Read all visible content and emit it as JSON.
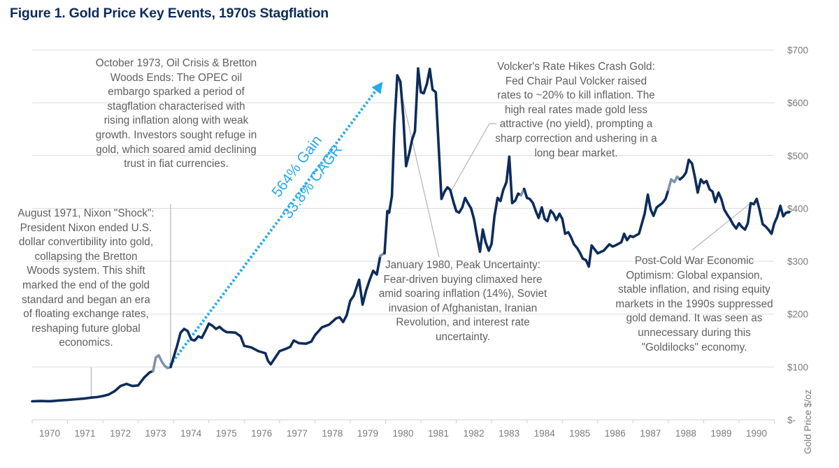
{
  "title": "Figure 1. Gold Price Key Events, 1970s Stagflation",
  "chart_data": {
    "type": "line",
    "title": "Figure 1. Gold Price Key Events, 1970s Stagflation",
    "xlabel": "",
    "ylabel": "Gold Price $/oz",
    "xlim": [
      1970,
      1991
    ],
    "ylim": [
      0,
      700
    ],
    "grid": true,
    "y_axis_side": "right",
    "x_ticks": [
      "1970",
      "1971",
      "1972",
      "1973",
      "1974",
      "1975",
      "1976",
      "1977",
      "1978",
      "1979",
      "1980",
      "1981",
      "1982",
      "1983",
      "1984",
      "1985",
      "1986",
      "1987",
      "1988",
      "1989",
      "1990"
    ],
    "y_ticks": [
      {
        "value": 0,
        "label": "$-"
      },
      {
        "value": 100,
        "label": "$100"
      },
      {
        "value": 200,
        "label": "$200"
      },
      {
        "value": 300,
        "label": "$300"
      },
      {
        "value": 400,
        "label": "$400"
      },
      {
        "value": 500,
        "label": "$500"
      },
      {
        "value": 600,
        "label": "$600"
      },
      {
        "value": 700,
        "label": "$700"
      }
    ],
    "series": [
      {
        "name": "Gold Price $/oz",
        "color": "#0d2c5a",
        "highlight_color": "#7f93ad",
        "points": [
          [
            1970.0,
            35
          ],
          [
            1970.25,
            35.5
          ],
          [
            1970.5,
            35.2
          ],
          [
            1970.75,
            36.5
          ],
          [
            1971.0,
            37.5
          ],
          [
            1971.25,
            39
          ],
          [
            1971.5,
            40.5
          ],
          [
            1971.67,
            42
          ],
          [
            1971.83,
            43
          ],
          [
            1972.0,
            45
          ],
          [
            1972.17,
            48
          ],
          [
            1972.33,
            54
          ],
          [
            1972.5,
            64
          ],
          [
            1972.67,
            68
          ],
          [
            1972.83,
            64
          ],
          [
            1973.0,
            65
          ],
          [
            1973.17,
            80
          ],
          [
            1973.33,
            90
          ],
          [
            1973.42,
            92
          ],
          [
            1973.5,
            118
          ],
          [
            1973.58,
            122
          ],
          [
            1973.67,
            110
          ],
          [
            1973.75,
            102
          ],
          [
            1973.83,
            98
          ],
          [
            1973.92,
            100
          ],
          [
            1974.0,
            118
          ],
          [
            1974.1,
            140
          ],
          [
            1974.2,
            165
          ],
          [
            1974.3,
            172
          ],
          [
            1974.4,
            168
          ],
          [
            1974.5,
            152
          ],
          [
            1974.6,
            150
          ],
          [
            1974.7,
            158
          ],
          [
            1974.8,
            155
          ],
          [
            1974.9,
            168
          ],
          [
            1975.0,
            182
          ],
          [
            1975.1,
            178
          ],
          [
            1975.2,
            172
          ],
          [
            1975.3,
            176
          ],
          [
            1975.4,
            170
          ],
          [
            1975.5,
            166
          ],
          [
            1975.75,
            165
          ],
          [
            1975.9,
            158
          ],
          [
            1976.0,
            140
          ],
          [
            1976.2,
            137
          ],
          [
            1976.4,
            130
          ],
          [
            1976.6,
            126
          ],
          [
            1976.67,
            112
          ],
          [
            1976.75,
            105
          ],
          [
            1976.9,
            120
          ],
          [
            1977.0,
            130
          ],
          [
            1977.2,
            135
          ],
          [
            1977.3,
            138
          ],
          [
            1977.4,
            150
          ],
          [
            1977.55,
            145
          ],
          [
            1977.75,
            144
          ],
          [
            1977.9,
            148
          ],
          [
            1978.0,
            160
          ],
          [
            1978.2,
            175
          ],
          [
            1978.4,
            180
          ],
          [
            1978.6,
            192
          ],
          [
            1978.7,
            194
          ],
          [
            1978.8,
            185
          ],
          [
            1978.9,
            198
          ],
          [
            1979.0,
            225
          ],
          [
            1979.1,
            235
          ],
          [
            1979.25,
            265
          ],
          [
            1979.35,
            218
          ],
          [
            1979.45,
            245
          ],
          [
            1979.55,
            265
          ],
          [
            1979.65,
            282
          ],
          [
            1979.75,
            275
          ],
          [
            1979.85,
            310
          ],
          [
            1979.95,
            315
          ],
          [
            1979.97,
            315
          ],
          [
            1980.05,
            395
          ],
          [
            1980.1,
            392
          ],
          [
            1980.18,
            424
          ],
          [
            1980.25,
            555
          ],
          [
            1980.33,
            652
          ],
          [
            1980.42,
            640
          ],
          [
            1980.5,
            574
          ],
          [
            1980.58,
            480
          ],
          [
            1980.67,
            505
          ],
          [
            1980.75,
            530
          ],
          [
            1980.83,
            546
          ],
          [
            1980.92,
            665
          ],
          [
            1981.0,
            620
          ],
          [
            1981.08,
            618
          ],
          [
            1981.17,
            636
          ],
          [
            1981.25,
            664
          ],
          [
            1981.33,
            625
          ],
          [
            1981.42,
            620
          ],
          [
            1981.5,
            520
          ],
          [
            1981.58,
            418
          ],
          [
            1981.67,
            432
          ],
          [
            1981.75,
            440
          ],
          [
            1981.83,
            435
          ],
          [
            1981.92,
            412
          ],
          [
            1982.0,
            395
          ],
          [
            1982.08,
            392
          ],
          [
            1982.17,
            402
          ],
          [
            1982.25,
            420
          ],
          [
            1982.33,
            410
          ],
          [
            1982.42,
            400
          ],
          [
            1982.5,
            380
          ],
          [
            1982.58,
            350
          ],
          [
            1982.67,
            318
          ],
          [
            1982.75,
            360
          ],
          [
            1982.83,
            336
          ],
          [
            1982.92,
            320
          ],
          [
            1983.0,
            333
          ],
          [
            1983.08,
            385
          ],
          [
            1983.17,
            420
          ],
          [
            1983.25,
            414
          ],
          [
            1983.33,
            435
          ],
          [
            1983.42,
            450
          ],
          [
            1983.5,
            498
          ],
          [
            1983.58,
            410
          ],
          [
            1983.67,
            415
          ],
          [
            1983.75,
            428
          ],
          [
            1983.83,
            425
          ],
          [
            1983.92,
            437
          ],
          [
            1984.0,
            420
          ],
          [
            1984.08,
            418
          ],
          [
            1984.17,
            410
          ],
          [
            1984.25,
            395
          ],
          [
            1984.33,
            382
          ],
          [
            1984.42,
            402
          ],
          [
            1984.5,
            380
          ],
          [
            1984.58,
            376
          ],
          [
            1984.67,
            396
          ],
          [
            1984.75,
            390
          ],
          [
            1984.83,
            378
          ],
          [
            1984.92,
            390
          ],
          [
            1985.0,
            380
          ],
          [
            1985.08,
            352
          ],
          [
            1985.17,
            355
          ],
          [
            1985.25,
            345
          ],
          [
            1985.33,
            332
          ],
          [
            1985.42,
            325
          ],
          [
            1985.5,
            316
          ],
          [
            1985.58,
            305
          ],
          [
            1985.67,
            302
          ],
          [
            1985.75,
            290
          ],
          [
            1985.83,
            330
          ],
          [
            1985.92,
            322
          ],
          [
            1986.0,
            315
          ],
          [
            1986.17,
            320
          ],
          [
            1986.33,
            332
          ],
          [
            1986.42,
            328
          ],
          [
            1986.5,
            330
          ],
          [
            1986.67,
            336
          ],
          [
            1986.75,
            352
          ],
          [
            1986.83,
            340
          ],
          [
            1986.92,
            348
          ],
          [
            1987.0,
            346
          ],
          [
            1987.17,
            352
          ],
          [
            1987.33,
            390
          ],
          [
            1987.42,
            426
          ],
          [
            1987.5,
            398
          ],
          [
            1987.58,
            386
          ],
          [
            1987.67,
            402
          ],
          [
            1987.83,
            410
          ],
          [
            1987.92,
            418
          ],
          [
            1988.0,
            435
          ],
          [
            1988.08,
            455
          ],
          [
            1988.17,
            450
          ],
          [
            1988.25,
            460
          ],
          [
            1988.33,
            455
          ],
          [
            1988.42,
            460
          ],
          [
            1988.5,
            468
          ],
          [
            1988.58,
            492
          ],
          [
            1988.67,
            485
          ],
          [
            1988.75,
            460
          ],
          [
            1988.83,
            430
          ],
          [
            1988.92,
            455
          ],
          [
            1989.0,
            448
          ],
          [
            1989.08,
            452
          ],
          [
            1989.17,
            436
          ],
          [
            1989.25,
            432
          ],
          [
            1989.33,
            412
          ],
          [
            1989.42,
            430
          ],
          [
            1989.5,
            418
          ],
          [
            1989.58,
            398
          ],
          [
            1989.67,
            388
          ],
          [
            1989.75,
            380
          ],
          [
            1989.83,
            370
          ],
          [
            1989.92,
            362
          ],
          [
            1990.0,
            372
          ],
          [
            1990.08,
            365
          ],
          [
            1990.17,
            360
          ],
          [
            1990.25,
            372
          ],
          [
            1990.33,
            410
          ],
          [
            1990.42,
            408
          ],
          [
            1990.5,
            418
          ],
          [
            1990.58,
            398
          ],
          [
            1990.67,
            370
          ],
          [
            1990.75,
            366
          ],
          [
            1990.83,
            360
          ],
          [
            1990.92,
            352
          ],
          [
            1991.0,
            372
          ],
          [
            1991.08,
            384
          ],
          [
            1991.17,
            405
          ],
          [
            1991.25,
            385
          ],
          [
            1991.33,
            392
          ],
          [
            1991.42,
            393
          ]
        ],
        "highlight_ranges": [
          [
            1973.42,
            1973.92
          ],
          [
            1979.85,
            1979.97
          ],
          [
            1983.83,
            1983.92
          ],
          [
            1988.0,
            1988.33
          ]
        ]
      }
    ],
    "arrow": {
      "from": [
        1973.83,
        97
      ],
      "to": [
        1980.0,
        645
      ],
      "color": "#29a9e8",
      "style": "dotted",
      "label_line1": "564% Gain",
      "label_line2": "33.8% CAGR"
    },
    "annotations": [
      {
        "id": "nixon",
        "text": "August 1971, Nixon \"Shock\": President Nixon ended U.S. dollar convertibility into gold, collapsing the Bretton Woods system. This shift marked the end of the gold standard and began an era of floating exchange rates, reshaping future global economics.",
        "target": [
          1971.67,
          42
        ]
      },
      {
        "id": "oil-crisis",
        "text": "October 1973, Oil Crisis & Bretton Woods Ends: The OPEC oil embargo sparked a period of stagflation characterised with rising inflation along with weak growth. Investors sought refuge in gold, which soared amid declining trust in fiat currencies.",
        "target": [
          1973.83,
          100
        ]
      },
      {
        "id": "peak-1980",
        "text": "January 1980, Peak Uncertainty: Fear-driven buying climaxed here amid soaring inflation (14%), Soviet invasion of Afghanistan, Iranian Revolution, and interest rate uncertainty.",
        "target": [
          1980.33,
          652
        ]
      },
      {
        "id": "volcker",
        "text": "Volcker's Rate Hikes Crash Gold: Fed Chair Paul Volcker raised rates to ~20% to kill inflation. The high real rates made gold less attractive (no yield), prompting a sharp correction and ushering in a long bear market.",
        "target": [
          1981.83,
          435
        ]
      },
      {
        "id": "post-cold-war",
        "text": "Post-Cold War Economic Optimism: Global expansion, stable inflation, and rising equity markets in the 1990s suppressed gold demand. It was seen as unnecessary during this \"Goldilocks\" economy.",
        "target": [
          1990.33,
          410
        ]
      }
    ]
  }
}
